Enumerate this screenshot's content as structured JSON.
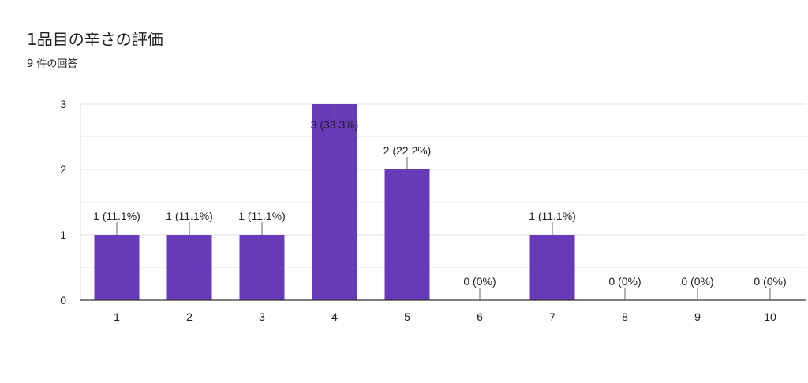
{
  "chart_data": {
    "type": "bar",
    "title": "1品目の辛さの評価",
    "subtitle": "9 件の回答",
    "categories": [
      "1",
      "2",
      "3",
      "4",
      "5",
      "6",
      "7",
      "8",
      "9",
      "10"
    ],
    "values": [
      1,
      1,
      1,
      3,
      2,
      0,
      1,
      0,
      0,
      0
    ],
    "data_labels": [
      "1 (11.1%)",
      "1 (11.1%)",
      "1 (11.1%)",
      "3 (33.3%)",
      "2 (22.2%)",
      "0 (0%)",
      "1 (11.1%)",
      "0 (0%)",
      "0 (0%)",
      "0 (0%)"
    ],
    "yticks": [
      "0",
      "1",
      "2",
      "3"
    ],
    "ylim": [
      0,
      3
    ],
    "xlabel": "",
    "ylabel": "",
    "grid": true,
    "legend": "none",
    "colors": {
      "bar": "#673ab7",
      "grid": "#e0e0e0",
      "axis": "#333333",
      "text": "#202124"
    }
  }
}
